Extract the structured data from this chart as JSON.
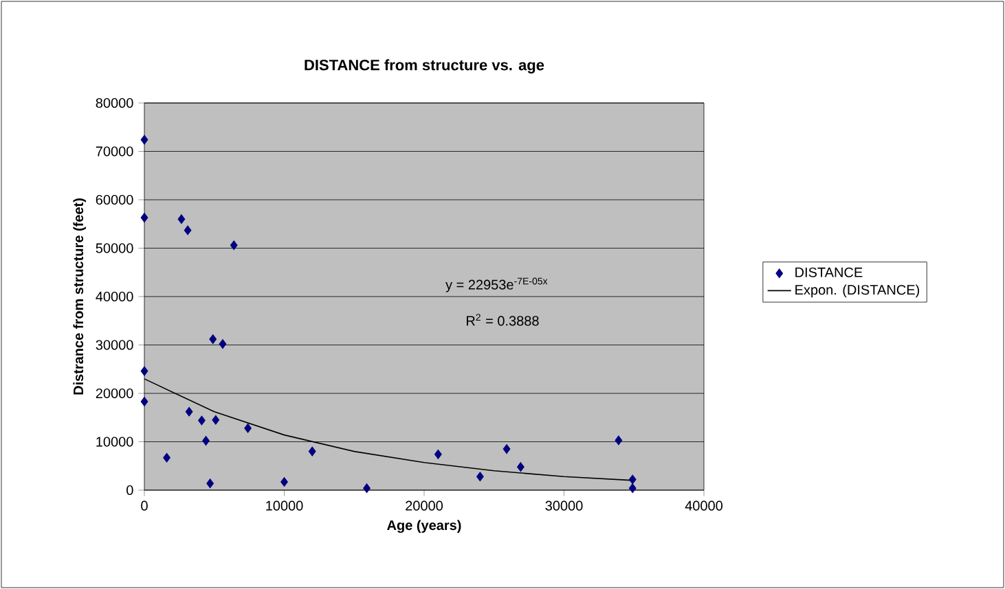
{
  "chart_data": {
    "type": "scatter",
    "title": "DISTANCE from structure vs. age",
    "xlabel": "Age (years)",
    "ylabel": "Distrance from structure (feet)",
    "xlim": [
      0,
      40000
    ],
    "xticks": [
      0,
      10000,
      20000,
      30000,
      40000
    ],
    "ylim": [
      0,
      80000
    ],
    "yticks": [
      0,
      10000,
      20000,
      30000,
      40000,
      50000,
      60000,
      70000,
      80000
    ],
    "grid": "y",
    "legend": "right",
    "annotations": [
      "y = 22953e$^{-7E-05x}$",
      "R$^{2}$ = 0.3888"
    ],
    "series": [
      {
        "name": "DISTANCE",
        "marker": "diamond",
        "color": "#000080",
        "x": [
          0,
          0,
          2650,
          3100,
          6400,
          4900,
          5600,
          0,
          0,
          1600,
          3200,
          4100,
          5100,
          4400,
          4700,
          7400,
          10000,
          12000,
          15900,
          21000,
          24000,
          25900,
          26900,
          33900,
          34900,
          34900
        ],
        "values": [
          72400,
          56300,
          56000,
          53700,
          50600,
          31200,
          30200,
          24600,
          18300,
          6700,
          16200,
          14400,
          14500,
          10200,
          1400,
          12800,
          1700,
          8000,
          400,
          7400,
          2800,
          8500,
          4800,
          10300,
          2200,
          400
        ]
      },
      {
        "name": "Expon. (DISTANCE)",
        "type": "line",
        "marker": "none",
        "color": "#000000",
        "x": [
          0,
          5000,
          10000,
          15000,
          20000,
          25000,
          30000,
          35000
        ],
        "values": [
          23000,
          16200,
          11400,
          8000,
          5700,
          4000,
          2800,
          2000
        ]
      }
    ]
  }
}
